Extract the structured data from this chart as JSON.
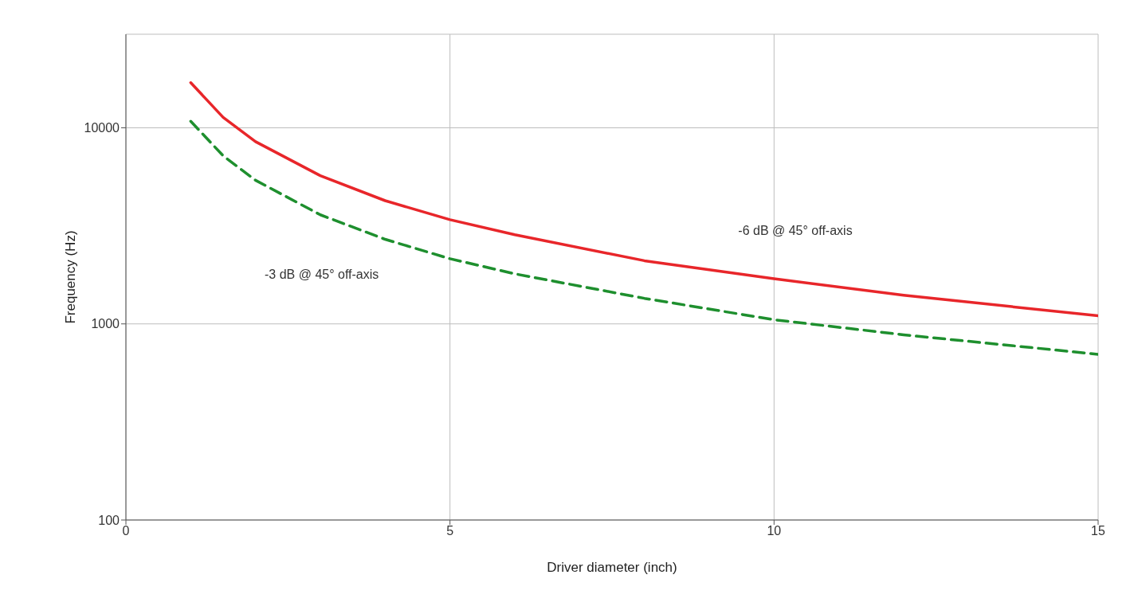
{
  "chart_data": {
    "type": "line",
    "xlabel": "Driver diameter (inch)",
    "ylabel": "Frequency (Hz)",
    "x": [
      1,
      1.5,
      2,
      3,
      4,
      5,
      6,
      8,
      10,
      12,
      15
    ],
    "series": [
      {
        "name": "-6 dB @ 45° off-axis",
        "color": "#e8262a",
        "line_style": "solid",
        "values": [
          17000,
          11300,
          8500,
          5700,
          4250,
          3400,
          2850,
          2100,
          1700,
          1400,
          1100
        ]
      },
      {
        "name": "-3 dB @ 45° off-axis",
        "color": "#1e8f2e",
        "line_style": "dashed",
        "values": [
          10800,
          7200,
          5400,
          3600,
          2700,
          2150,
          1800,
          1350,
          1050,
          880,
          700
        ]
      }
    ],
    "xlim": [
      0,
      15
    ],
    "xticks": [
      0,
      5,
      10,
      15
    ],
    "ylim": [
      100,
      30000
    ],
    "yticks": [
      100,
      1000,
      10000
    ],
    "log": "y",
    "grid": true,
    "legend": false,
    "marker": "none"
  }
}
